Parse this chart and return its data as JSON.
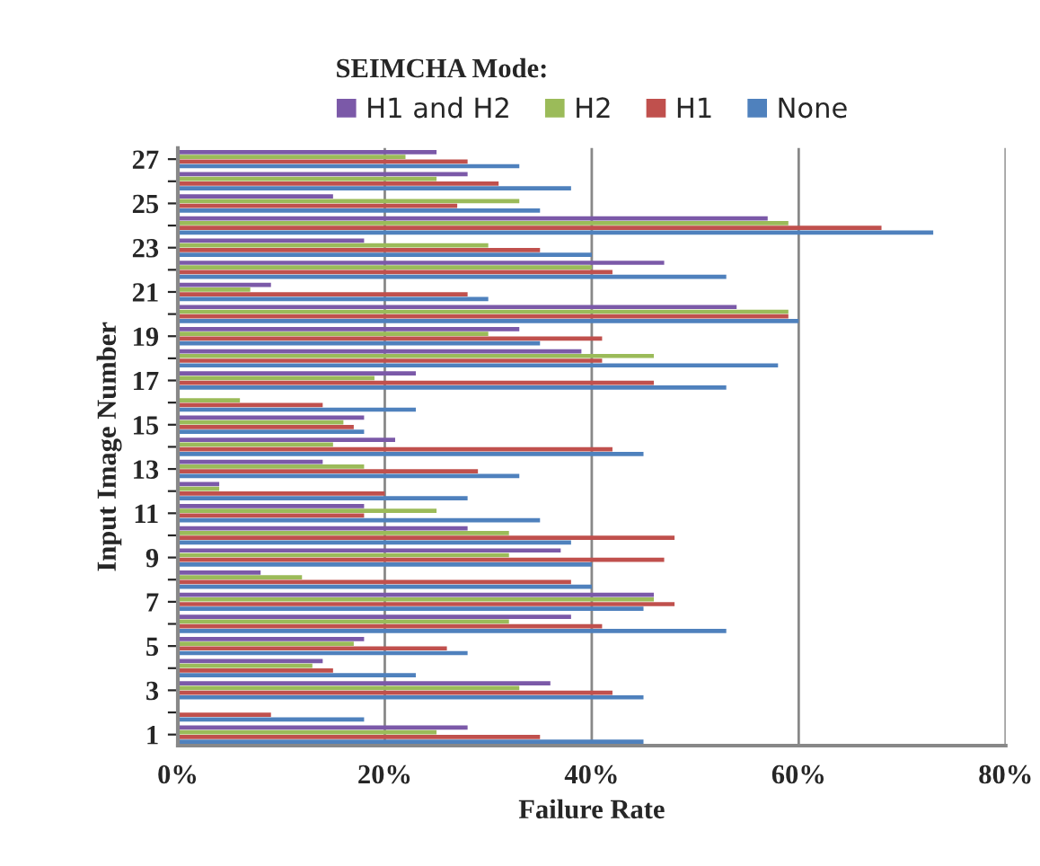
{
  "chart_data": {
    "type": "bar",
    "orientation": "horizontal",
    "xlabel": "Failure Rate",
    "ylabel": "Input Image Number",
    "legend_title": "SEIMCHA Mode:",
    "categories": [
      "27",
      null,
      "25",
      null,
      "23",
      null,
      "21",
      null,
      "19",
      null,
      "17",
      null,
      "15",
      null,
      "13",
      null,
      "11",
      null,
      "9",
      null,
      "7",
      null,
      "5",
      null,
      "3",
      null,
      "1"
    ],
    "series": [
      {
        "name": "H1 and H2",
        "color": "#7b59a8",
        "values": [
          25,
          28,
          15,
          57,
          18,
          47,
          9,
          54,
          33,
          39,
          23,
          null,
          18,
          21,
          14,
          4,
          18,
          28,
          37,
          8,
          46,
          38,
          18,
          14,
          36,
          null,
          28
        ]
      },
      {
        "name": "H2",
        "color": "#9bbb59",
        "values": [
          22,
          25,
          33,
          59,
          30,
          40,
          7,
          59,
          30,
          46,
          19,
          6,
          16,
          15,
          18,
          4,
          25,
          32,
          32,
          12,
          46,
          32,
          17,
          13,
          33,
          null,
          25
        ]
      },
      {
        "name": "H1",
        "color": "#c0504d",
        "values": [
          28,
          31,
          27,
          68,
          35,
          42,
          28,
          59,
          41,
          41,
          46,
          14,
          17,
          42,
          29,
          20,
          18,
          48,
          47,
          38,
          48,
          41,
          26,
          15,
          42,
          9,
          35
        ]
      },
      {
        "name": "None",
        "color": "#4f81bd",
        "values": [
          33,
          38,
          35,
          73,
          40,
          53,
          30,
          60,
          35,
          58,
          53,
          23,
          18,
          45,
          33,
          28,
          35,
          38,
          40,
          40,
          45,
          53,
          28,
          23,
          45,
          18,
          45
        ]
      }
    ],
    "xlim": [
      0,
      80
    ],
    "xticks": [
      {
        "value": 0,
        "label": "0%"
      },
      {
        "value": 20,
        "label": "20%"
      },
      {
        "value": 40,
        "label": "40%"
      },
      {
        "value": 60,
        "label": "60%"
      },
      {
        "value": 80,
        "label": "80%"
      }
    ],
    "grid": "x",
    "legend": "top"
  }
}
